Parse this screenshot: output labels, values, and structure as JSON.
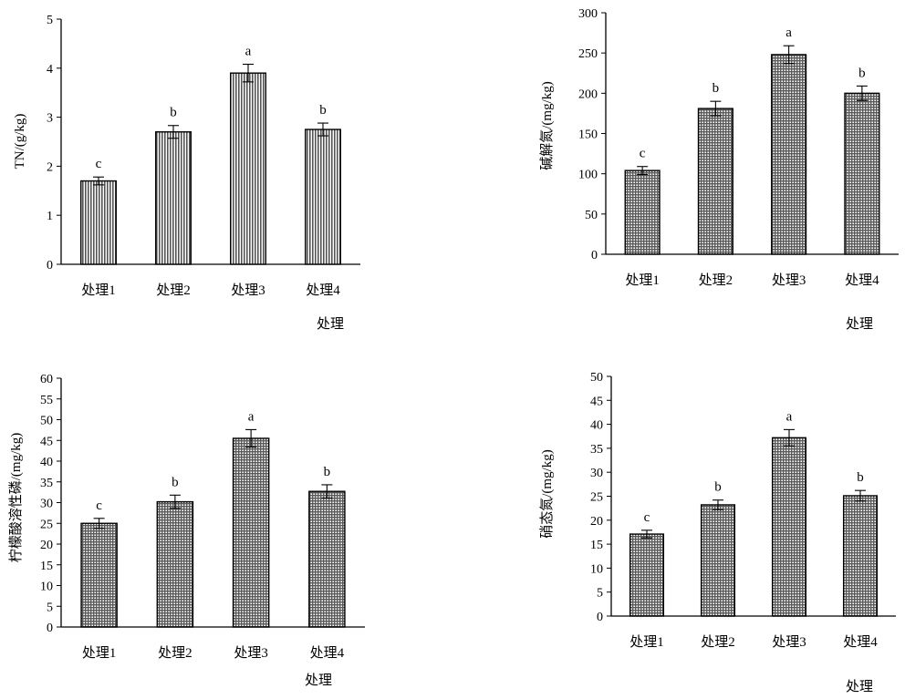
{
  "chart_data": [
    {
      "type": "bar",
      "categories": [
        "处理1",
        "处理2",
        "处理3",
        "处理4"
      ],
      "values": [
        1.7,
        2.7,
        3.9,
        2.75
      ],
      "errors": [
        0.08,
        0.13,
        0.18,
        0.13
      ],
      "letters": [
        "c",
        "b",
        "a",
        "b"
      ],
      "xlabel": "处理",
      "ylabel": "TN/(g/kg)",
      "ylim": [
        0,
        5
      ],
      "yticks": [
        0,
        1,
        2,
        3,
        4,
        5
      ],
      "pattern": "vertical-hatch",
      "grid": false
    },
    {
      "type": "bar",
      "categories": [
        "处理1",
        "处理2",
        "处理3",
        "处理4"
      ],
      "values": [
        104,
        181,
        248,
        200
      ],
      "errors": [
        5,
        9,
        11,
        9
      ],
      "letters": [
        "c",
        "b",
        "a",
        "b"
      ],
      "xlabel": "处理",
      "ylabel": "碱解氮/(mg/kg)",
      "ylim": [
        0,
        300
      ],
      "yticks": [
        0,
        50,
        100,
        150,
        200,
        250,
        300
      ],
      "pattern": "crosshatch",
      "grid": false
    },
    {
      "type": "bar",
      "categories": [
        "处理1",
        "处理2",
        "处理3",
        "处理4"
      ],
      "values": [
        25,
        30.2,
        45.5,
        32.7
      ],
      "errors": [
        1.2,
        1.6,
        2.1,
        1.6
      ],
      "letters": [
        "c",
        "b",
        "a",
        "b"
      ],
      "xlabel": "处理",
      "ylabel": "柠檬酸溶性磷/(mg/kg)",
      "ylim": [
        0,
        60
      ],
      "yticks": [
        0,
        5,
        10,
        15,
        20,
        25,
        30,
        35,
        40,
        45,
        50,
        55,
        60
      ],
      "pattern": "crosshatch",
      "grid": false
    },
    {
      "type": "bar",
      "categories": [
        "处理1",
        "处理2",
        "处理3",
        "处理4"
      ],
      "values": [
        17.1,
        23.2,
        37.2,
        25.1
      ],
      "errors": [
        0.8,
        1.0,
        1.7,
        1.1
      ],
      "letters": [
        "c",
        "b",
        "a",
        "b"
      ],
      "xlabel": "处理",
      "ylabel": "硝态氮/(mg/kg)",
      "ylim": [
        0,
        50
      ],
      "yticks": [
        0,
        5,
        10,
        15,
        20,
        25,
        30,
        35,
        40,
        45,
        50
      ],
      "pattern": "crosshatch",
      "grid": false
    }
  ]
}
